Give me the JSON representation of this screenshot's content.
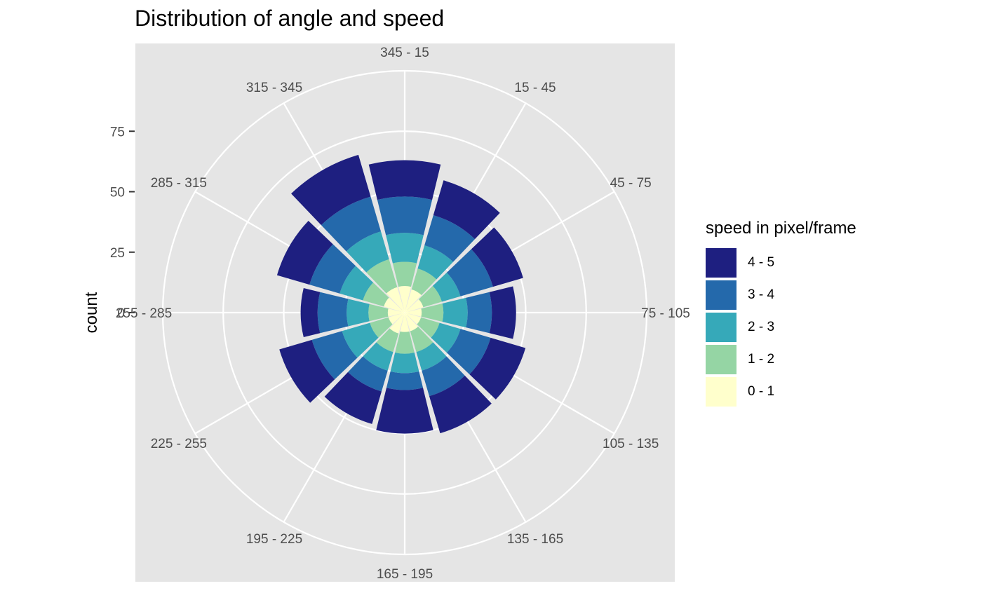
{
  "chart_data": {
    "type": "bar",
    "subtype": "polar-stacked-bar",
    "title": "Distribution of angle and speed",
    "xlabel": "",
    "ylabel": "count",
    "categories": [
      "345 - 15",
      "15 - 45",
      "45 - 75",
      "75 - 105",
      "105 - 135",
      "135 - 165",
      "165 - 195",
      "195 - 225",
      "225 - 255",
      "255 - 285",
      "285 - 315",
      "315 - 345"
    ],
    "series": [
      {
        "name": "0 - 1",
        "color": "#ffffcc",
        "values": [
          11,
          10,
          8,
          7,
          7,
          8,
          8,
          9,
          7,
          7,
          9,
          11
        ]
      },
      {
        "name": "1 - 2",
        "color": "#95d5a4",
        "values": [
          10,
          9,
          8,
          9,
          8,
          9,
          9,
          8,
          8,
          8,
          9,
          12
        ]
      },
      {
        "name": "2 - 3",
        "color": "#36a9b9",
        "values": [
          12,
          10,
          8,
          10,
          9,
          8,
          8,
          8,
          12,
          9,
          10,
          12
        ]
      },
      {
        "name": "3 - 4",
        "color": "#2469ab",
        "values": [
          15,
          13,
          14,
          10,
          13,
          11,
          7,
          9,
          13,
          12,
          13,
          15
        ]
      },
      {
        "name": "4 - 5",
        "color": "#1e1f80",
        "values": [
          15,
          15,
          13,
          10,
          15,
          16,
          18,
          14,
          14,
          7,
          14,
          18
        ]
      }
    ],
    "yticks": [
      0,
      25,
      50,
      75
    ],
    "ylim": [
      0,
      100
    ],
    "grid": true,
    "legend": {
      "title": "speed in pixel/frame",
      "position": "right",
      "order": [
        "4 - 5",
        "3 - 4",
        "2 - 3",
        "1 - 2",
        "0 - 1"
      ]
    }
  }
}
